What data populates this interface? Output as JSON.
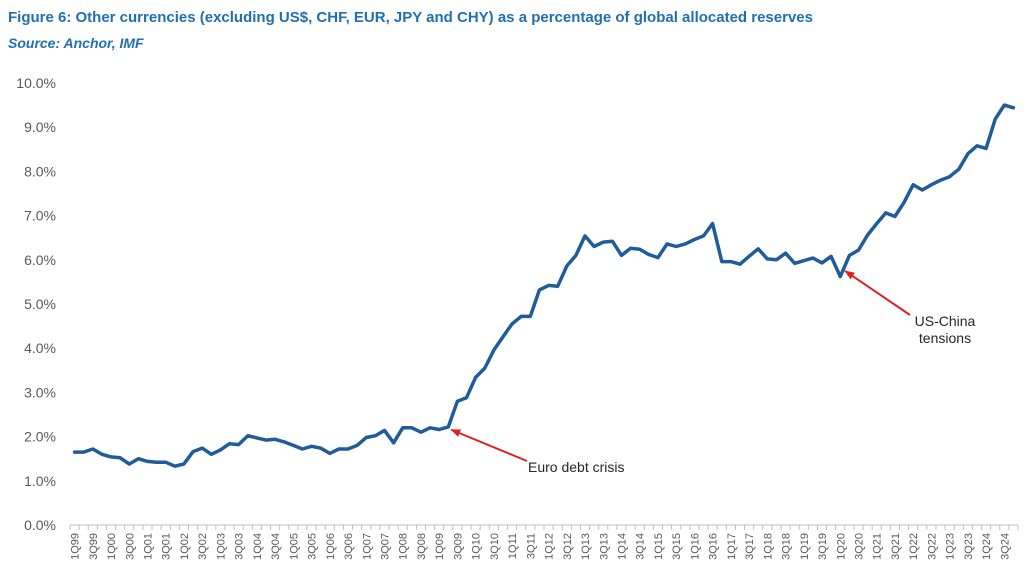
{
  "chart_data": {
    "type": "line",
    "title": "Figure 6: Other currencies (excluding US$, CHF, EUR, JPY and CHY) as a percentage of global allocated reserves",
    "subtitle": "Source: Anchor, IMF",
    "xlabel": "",
    "ylabel": "",
    "ylim": [
      0,
      10
    ],
    "ytick_labels": [
      "0.0%",
      "1.0%",
      "2.0%",
      "3.0%",
      "4.0%",
      "5.0%",
      "6.0%",
      "7.0%",
      "8.0%",
      "9.0%",
      "10.0%"
    ],
    "grid": false,
    "line_color": "#1f5c99",
    "x_tick_labels": [
      "1Q99",
      "3Q99",
      "1Q00",
      "3Q00",
      "1Q01",
      "3Q01",
      "1Q02",
      "3Q02",
      "1Q03",
      "3Q03",
      "1Q04",
      "3Q04",
      "1Q05",
      "3Q05",
      "1Q06",
      "3Q06",
      "1Q07",
      "3Q07",
      "1Q08",
      "3Q08",
      "1Q09",
      "3Q09",
      "1Q10",
      "3Q10",
      "1Q11",
      "3Q11",
      "1Q12",
      "3Q12",
      "1Q13",
      "3Q13",
      "1Q14",
      "3Q14",
      "1Q15",
      "3Q15",
      "1Q16",
      "3Q16",
      "1Q17",
      "3Q17",
      "1Q18",
      "3Q18",
      "1Q19",
      "3Q19",
      "1Q20",
      "3Q20",
      "1Q21",
      "3Q21",
      "1Q22",
      "3Q22",
      "1Q23",
      "3Q23",
      "1Q24",
      "3Q24"
    ],
    "series": [
      {
        "values": [
          1.65,
          1.65,
          1.72,
          1.6,
          1.54,
          1.52,
          1.38,
          1.5,
          1.44,
          1.42,
          1.42,
          1.33,
          1.38,
          1.66,
          1.74,
          1.6,
          1.7,
          1.84,
          1.82,
          2.02,
          1.97,
          1.92,
          1.94,
          1.88,
          1.8,
          1.72,
          1.78,
          1.74,
          1.62,
          1.72,
          1.72,
          1.8,
          1.98,
          2.02,
          2.14,
          1.86,
          2.2,
          2.2,
          2.1,
          2.2,
          2.16,
          2.22,
          2.8,
          2.88,
          3.34,
          3.55,
          3.96,
          4.26,
          4.55,
          4.72,
          4.72,
          5.32,
          5.42,
          5.4,
          5.86,
          6.1,
          6.54,
          6.3,
          6.4,
          6.42,
          6.1,
          6.26,
          6.24,
          6.12,
          6.05,
          6.36,
          6.3,
          6.36,
          6.46,
          6.54,
          6.82,
          5.96,
          5.96,
          5.9,
          6.08,
          6.25,
          6.02,
          6.0,
          6.15,
          5.92,
          5.98,
          6.04,
          5.93,
          6.08,
          5.62,
          6.1,
          6.22,
          6.56,
          6.82,
          7.06,
          6.98,
          7.3,
          7.7,
          7.58,
          7.7,
          7.8,
          7.88,
          8.05,
          8.4,
          8.58,
          8.52,
          9.18,
          9.5,
          9.44
        ]
      }
    ],
    "annotations": [
      {
        "label": "Euro debt crisis",
        "x_index": 41,
        "y": 2.2
      },
      {
        "label_lines": [
          "US-China",
          "tensions"
        ],
        "x_index": 84,
        "y": 5.7
      }
    ],
    "annotation_arrow_color": "#e02020"
  }
}
